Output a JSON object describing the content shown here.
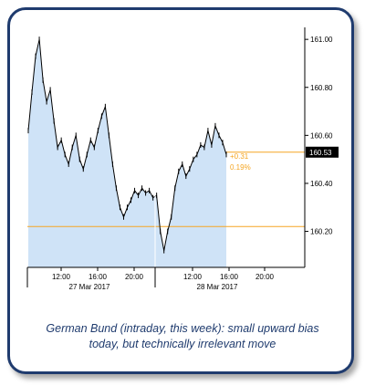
{
  "caption": {
    "line1": "German Bund (intraday, this week): small upward bias",
    "line2": "today, but technically irrelevant move"
  },
  "colors": {
    "frame": "#1f3b6e",
    "area_fill": "#cfe3f7",
    "price_line": "#000000",
    "level_line": "#f5a623",
    "change_text": "#f5a623",
    "last_price_bg": "#000000",
    "last_price_text": "#ffffff"
  },
  "chart_data": {
    "type": "area",
    "x_tick_labels": [
      "12:00",
      "16:00",
      "20:00",
      "12:00",
      "16:00",
      "20:00"
    ],
    "date_labels": [
      "27 Mar 2017",
      "28 Mar 2017"
    ],
    "y_tick_labels": [
      "161.00",
      "160.80",
      "160.60",
      "160.40",
      "160.20"
    ],
    "ylim": [
      160.05,
      161.05
    ],
    "last_price_label": "160.53",
    "change_abs": "+0.31",
    "change_pct": "0.19%",
    "reference_level": 160.22,
    "current_level": 160.53,
    "series": [
      {
        "values": [
          160.62,
          160.78,
          160.93,
          161.0,
          160.83,
          160.74,
          160.79,
          160.66,
          160.55,
          160.58,
          160.52,
          160.48,
          160.55,
          160.6,
          160.5,
          160.46,
          160.52,
          160.58,
          160.55,
          160.62,
          160.68,
          160.72,
          160.6,
          160.48,
          160.38,
          160.3,
          160.26,
          160.3,
          160.33,
          160.37,
          160.35,
          160.38,
          160.36,
          160.37,
          160.34,
          160.35,
          160.2,
          160.12,
          160.2,
          160.26,
          160.38,
          160.45,
          160.48,
          160.43,
          160.46,
          160.5,
          160.52,
          160.56,
          160.55,
          160.62,
          160.56,
          160.64,
          160.6,
          160.57,
          160.52
        ]
      }
    ]
  }
}
